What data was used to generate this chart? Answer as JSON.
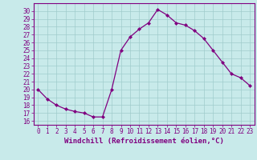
{
  "x": [
    0,
    1,
    2,
    3,
    4,
    5,
    6,
    7,
    8,
    9,
    10,
    11,
    12,
    13,
    14,
    15,
    16,
    17,
    18,
    19,
    20,
    21,
    22,
    23
  ],
  "y": [
    20.0,
    18.8,
    18.0,
    17.5,
    17.2,
    17.0,
    16.5,
    16.5,
    20.0,
    25.0,
    26.7,
    27.7,
    28.5,
    30.2,
    29.5,
    28.5,
    28.2,
    27.5,
    26.5,
    25.0,
    23.5,
    22.0,
    21.5,
    20.5
  ],
  "line_color": "#800080",
  "marker": "D",
  "marker_size": 2,
  "bg_color": "#c8eaea",
  "grid_color": "#a0cccc",
  "xlabel": "Windchill (Refroidissement éolien,°C)",
  "xlim": [
    -0.5,
    23.5
  ],
  "ylim": [
    15.5,
    31.0
  ],
  "yticks": [
    16,
    17,
    18,
    19,
    20,
    21,
    22,
    23,
    24,
    25,
    26,
    27,
    28,
    29,
    30
  ],
  "xticks": [
    0,
    1,
    2,
    3,
    4,
    5,
    6,
    7,
    8,
    9,
    10,
    11,
    12,
    13,
    14,
    15,
    16,
    17,
    18,
    19,
    20,
    21,
    22,
    23
  ],
  "tick_color": "#800080",
  "label_color": "#800080",
  "tick_fontsize": 5.5,
  "xlabel_fontsize": 6.5
}
